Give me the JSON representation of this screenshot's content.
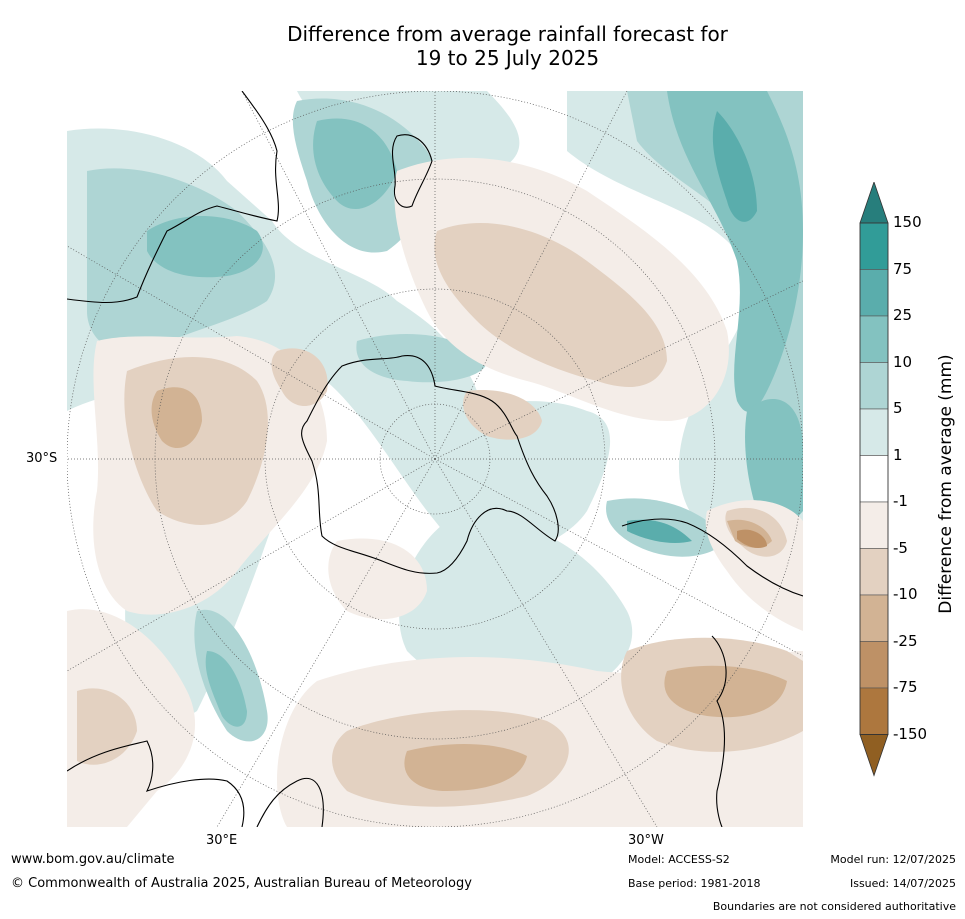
{
  "title": {
    "line1": "Difference from average rainfall forecast for",
    "line2": "19 to 25 July 2025"
  },
  "map": {
    "projection": "south-polar",
    "lat_label": "30°S",
    "lon_labels": {
      "east": "30°E",
      "west": "30°W"
    }
  },
  "colorbar": {
    "title": "Difference from average (mm)",
    "extend": "both",
    "levels": [
      "150",
      "75",
      "25",
      "10",
      "5",
      "1",
      "-1",
      "-5",
      "-10",
      "-25",
      "-75",
      "-150"
    ],
    "colors": {
      "above_150": "#277e7c",
      "75_150": "#319c98",
      "25_75": "#5aadac",
      "10_25": "#83c2c0",
      "5_10": "#aed5d4",
      "1_5": "#d6e9e8",
      "neutral": "#ffffff",
      "m1_m5": "#f4ede8",
      "m5_m10": "#e3d1c1",
      "m10_m25": "#d2b394",
      "m25_m75": "#be9166",
      "m75_m150": "#ad773e",
      "below_m150": "#905f22"
    }
  },
  "footer": {
    "url": "www.bom.gov.au/climate",
    "copyright": "© Commonwealth of Australia 2025, Australian Bureau of Meteorology",
    "model": "Model: ACCESS-S2",
    "base_period": "Base period: 1981-2018",
    "model_run": "Model run: 12/07/2025",
    "issued": "Issued: 14/07/2025",
    "disclaimer": "Boundaries are not considered authoritative"
  }
}
